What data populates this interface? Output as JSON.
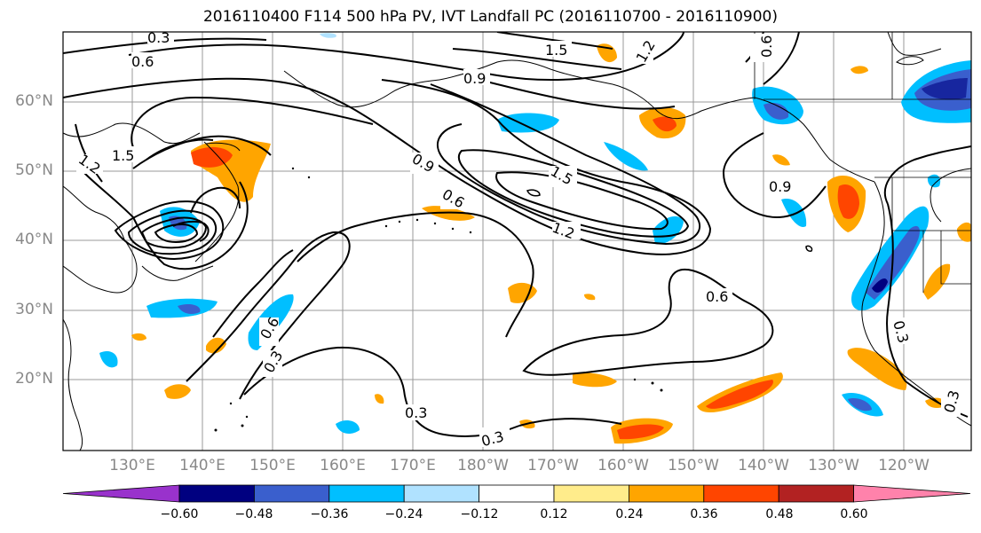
{
  "title": "2016110400 F114 500 hPa PV, IVT Landfall PC (2016110700 - 2016110900)",
  "lat_labels": [
    "60°N",
    "50°N",
    "40°N",
    "30°N",
    "20°N"
  ],
  "lon_labels": [
    "130°E",
    "140°E",
    "150°E",
    "160°E",
    "170°E",
    "180°W",
    "170°W",
    "160°W",
    "150°W",
    "140°W",
    "130°W",
    "120°W"
  ],
  "contour_labels": [
    "0.3",
    "0.6",
    "1.5",
    "1.2",
    "0.9",
    "0.6",
    "1.5",
    "1.2",
    "0.9",
    "1.5",
    "0.6",
    "1.2",
    "0.9",
    "0.6",
    "0.6",
    "0.3",
    "0.3",
    "0.3",
    "0.3",
    "0.3"
  ],
  "colorbar": {
    "ticks": [
      "−0.60",
      "−0.48",
      "−0.36",
      "−0.24",
      "−0.12",
      "0.12",
      "0.24",
      "0.36",
      "0.48",
      "0.60"
    ],
    "colors": [
      "#9932cc",
      "#000080",
      "#3a5fcd",
      "#00bfff",
      "#b0e2ff",
      "#ffffff",
      "#ffec8b",
      "#ffa500",
      "#ff4500",
      "#b22222",
      "#ff82ab"
    ]
  }
}
